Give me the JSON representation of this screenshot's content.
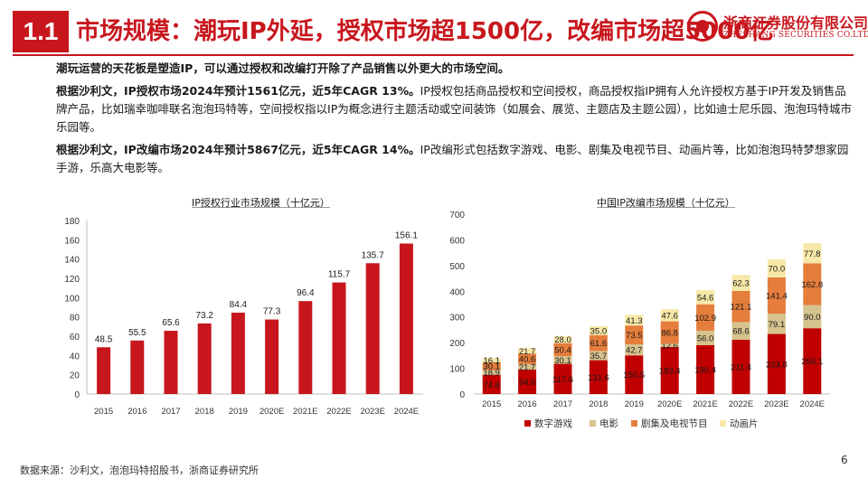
{
  "header": {
    "section": "1.1",
    "title": "市场规模：潮玩IP外延，授权市场超1500亿，改编市场超5000亿",
    "logo_cn": "浙商证券股份有限公司",
    "logo_en": "ZHESHANG SECURITIES CO.LTD"
  },
  "paragraphs": [
    {
      "bold": "潮玩运营的天花板是塑造IP，可以通过授权和改编打开除了产品销售以外更大的市场空间。",
      "text": ""
    },
    {
      "bold": "根据沙利文，IP授权市场2024年预计1561亿元，近5年CAGR 13%。",
      "text": "IP授权包括商品授权和空间授权，商品授权指IP拥有人允许授权方基于IP开发及销售品牌产品，比如瑞幸咖啡联名泡泡玛特等，空间授权指以IP为概念进行主题活动或空间装饰（如展会、展览、主题店及主题公园），比如迪士尼乐园、泡泡玛特城市乐园等。"
    },
    {
      "bold": "根据沙利文，IP改编市场2024年预计5867亿元，近5年CAGR 14%。",
      "text": "IP改编形式包括数字游戏、电影、剧集及电视节目、动画片等，比如泡泡玛特梦想家园手游，乐高大电影等。"
    }
  ],
  "footer": {
    "source": "数据来源：沙利文，泡泡玛特招股书，浙商证券研究所",
    "page_number": "6"
  },
  "colors": {
    "brand_red": "#c8161d",
    "game": "#c00000",
    "film": "#d6c38e",
    "tv": "#e57d3c",
    "animation": "#f7e8a8"
  },
  "chart_data": [
    {
      "type": "bar",
      "title": "IP授权行业市场规模（十亿元）",
      "categories": [
        "2015",
        "2016",
        "2017",
        "2018",
        "2019",
        "2020E",
        "2021E",
        "2022E",
        "2023E",
        "2024E"
      ],
      "values": [
        48.5,
        55.5,
        65.6,
        73.2,
        84.4,
        77.3,
        96.4,
        115.7,
        135.7,
        156.1
      ],
      "ylim": [
        0,
        180
      ],
      "yticks": [
        0,
        20,
        40,
        60,
        80,
        100,
        120,
        140,
        160,
        180
      ],
      "grid": false
    },
    {
      "type": "bar",
      "stacked": true,
      "title": "中国IP改编市场规模（十亿元）",
      "categories": [
        "2015",
        "2016",
        "2017",
        "2018",
        "2019",
        "2020E",
        "2021E",
        "2022E",
        "2023E",
        "2024E"
      ],
      "series": [
        {
          "name": "数字游戏",
          "color": "#c00000",
          "values": [
            74.6,
            94.6,
            117.6,
            131.6,
            150.5,
            183.4,
            190.4,
            211.4,
            233.8,
            256.1
          ]
        },
        {
          "name": "电影",
          "color": "#d6c38e",
          "values": [
            18.9,
            21.7,
            30.1,
            35.7,
            42.7,
            12.6,
            56.0,
            68.6,
            79.1,
            90.0
          ]
        },
        {
          "name": "剧集及电视节目",
          "color": "#e57d3c",
          "values": [
            30.1,
            40.6,
            50.4,
            61.6,
            73.5,
            86.8,
            102.9,
            121.1,
            141.4,
            162.8
          ]
        },
        {
          "name": "动画片",
          "color": "#f7e8a8",
          "values": [
            16.1,
            21.7,
            28.0,
            35.0,
            41.3,
            47.6,
            54.6,
            62.3,
            70.0,
            77.8
          ]
        }
      ],
      "ylim": [
        0,
        700
      ],
      "yticks": [
        0,
        100,
        200,
        300,
        400,
        500,
        600,
        700
      ],
      "legend": "bottom",
      "grid": false
    }
  ]
}
